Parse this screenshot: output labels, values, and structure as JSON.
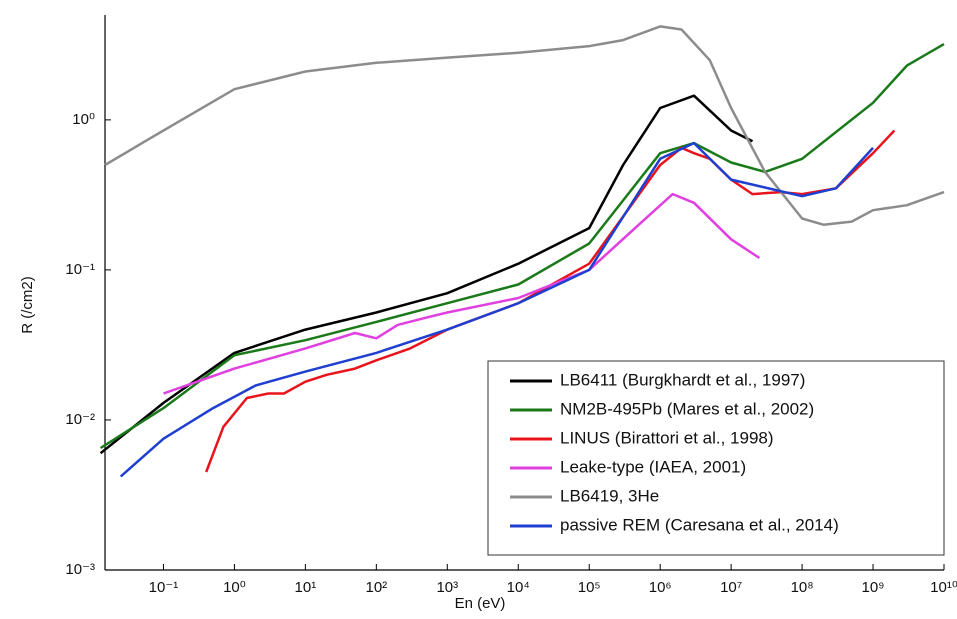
{
  "chart_data": {
    "type": "line",
    "x_label": "En (eV)",
    "y_label": "R (/cm2)",
    "xscale": "log",
    "yscale": "log",
    "xlim": [
      0.015,
      10000000000
    ],
    "ylim": [
      0.001,
      5
    ],
    "xticks": [
      {
        "value": 0.1,
        "label": "10⁻¹"
      },
      {
        "value": 1,
        "label": "10⁰"
      },
      {
        "value": 10,
        "label": "10¹"
      },
      {
        "value": 100,
        "label": "10²"
      },
      {
        "value": 1000,
        "label": "10³"
      },
      {
        "value": 10000,
        "label": "10⁴"
      },
      {
        "value": 100000,
        "label": "10⁵"
      },
      {
        "value": 1000000,
        "label": "10⁶"
      },
      {
        "value": 10000000,
        "label": "10⁷"
      },
      {
        "value": 100000000,
        "label": "10⁸"
      },
      {
        "value": 1000000000,
        "label": "10⁹"
      },
      {
        "value": 10000000000,
        "label": "10¹⁰"
      }
    ],
    "yticks": [
      {
        "value": 0.001,
        "label": "10⁻³"
      },
      {
        "value": 0.01,
        "label": "10⁻²"
      },
      {
        "value": 0.1,
        "label": "10⁻¹"
      },
      {
        "value": 1,
        "label": "10⁰"
      }
    ],
    "legend": "lower right",
    "series": [
      {
        "name": "LB6411 (Burgkhardt et al., 1997)",
        "color": "#000000",
        "x": [
          0.013,
          0.1,
          1,
          10,
          100,
          1000,
          10000,
          100000,
          300000,
          1000000,
          3000000,
          10000000,
          20000000
        ],
        "values": [
          0.006,
          0.013,
          0.028,
          0.04,
          0.052,
          0.07,
          0.11,
          0.19,
          0.5,
          1.2,
          1.45,
          0.85,
          0.72
        ]
      },
      {
        "name": "NM2B-495Pb (Mares et al., 2002)",
        "color": "#1a7a1a",
        "x": [
          0.013,
          0.1,
          1,
          10,
          100,
          1000,
          10000,
          100000,
          1000000,
          3000000,
          10000000,
          30000000,
          100000000,
          1000000000,
          3000000000,
          10000000000
        ],
        "values": [
          0.0065,
          0.012,
          0.027,
          0.034,
          0.045,
          0.06,
          0.08,
          0.15,
          0.6,
          0.7,
          0.52,
          0.45,
          0.55,
          1.3,
          2.3,
          3.2
        ]
      },
      {
        "name": "LINUS (Birattori et al., 1998)",
        "color": "#e8141c",
        "x": [
          0.4,
          0.7,
          1.5,
          3,
          5,
          10,
          20,
          50,
          100,
          300,
          1000,
          10000,
          100000,
          1000000,
          2000000,
          3000000,
          5000000,
          10000000,
          20000000,
          50000000,
          100000000,
          300000000,
          1000000000,
          2000000000
        ],
        "values": [
          0.0045,
          0.009,
          0.014,
          0.015,
          0.015,
          0.018,
          0.02,
          0.022,
          0.025,
          0.03,
          0.04,
          0.06,
          0.11,
          0.5,
          0.65,
          0.6,
          0.55,
          0.4,
          0.32,
          0.33,
          0.32,
          0.35,
          0.6,
          0.85
        ]
      },
      {
        "name": "Leake-type (IAEA, 2001)",
        "color": "#e040e0",
        "x": [
          0.1,
          1,
          10,
          50,
          100,
          200,
          500,
          1000,
          10000,
          100000,
          500000,
          1500000,
          3000000,
          10000000,
          25000000
        ],
        "values": [
          0.015,
          0.022,
          0.03,
          0.038,
          0.035,
          0.043,
          0.048,
          0.052,
          0.065,
          0.1,
          0.2,
          0.32,
          0.28,
          0.16,
          0.12
        ]
      },
      {
        "name": "LB6419, 3He",
        "color": "#8c8c8c",
        "x": [
          0.015,
          0.05,
          0.1,
          1,
          10,
          100,
          1000,
          10000,
          100000,
          300000,
          1000000,
          2000000,
          5000000,
          10000000,
          30000000,
          100000000,
          200000000,
          500000000,
          1000000000,
          3000000000,
          10000000000
        ],
        "values": [
          0.5,
          0.7,
          0.85,
          1.6,
          2.1,
          2.4,
          2.6,
          2.8,
          3.1,
          3.4,
          4.2,
          4,
          2.5,
          1.2,
          0.45,
          0.22,
          0.2,
          0.21,
          0.25,
          0.27,
          0.33
        ]
      },
      {
        "name": "passive REM (Caresana et al., 2014)",
        "color": "#1f3fd0",
        "x": [
          0.025,
          0.1,
          0.5,
          2,
          10,
          100,
          1000,
          10000,
          100000,
          1000000,
          3000000,
          10000000,
          100000000,
          300000000,
          1000000000
        ],
        "values": [
          0.0042,
          0.0075,
          0.012,
          0.017,
          0.021,
          0.028,
          0.04,
          0.06,
          0.1,
          0.55,
          0.7,
          0.4,
          0.31,
          0.35,
          0.65
        ]
      }
    ]
  }
}
